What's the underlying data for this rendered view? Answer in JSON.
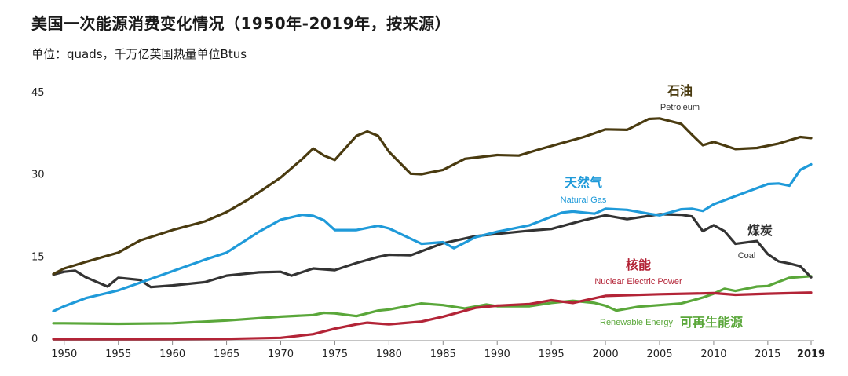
{
  "title": "美国一次能源消费变化情况（1950年-2019年，按来源）",
  "subtitle": "单位：quads，千万亿英国热量单位Btus",
  "chart_data": {
    "type": "line",
    "title": "美国一次能源消费变化情况（1950年-2019年，按来源）",
    "ylabel": "单位：quads，千万亿英国热量单位Btus",
    "xlabel": "",
    "ylim": [
      0,
      45
    ],
    "xlim": [
      1949,
      2019
    ],
    "yticks": [
      0,
      15,
      30,
      45
    ],
    "xticks": [
      1950,
      1955,
      1960,
      1965,
      1970,
      1975,
      1980,
      1985,
      1990,
      1995,
      2000,
      2005,
      2010,
      2015,
      2019
    ],
    "grid": false,
    "series": [
      {
        "name": "石油 Petroleum",
        "label_cn": "石油",
        "label_en": "Petroleum",
        "color": "#4a3b10",
        "x": [
          1949,
          1950,
          1952,
          1955,
          1957,
          1960,
          1963,
          1965,
          1967,
          1970,
          1972,
          1973,
          1974,
          1975,
          1977,
          1978,
          1979,
          1980,
          1982,
          1983,
          1985,
          1987,
          1990,
          1992,
          1994,
          1996,
          1998,
          2000,
          2002,
          2004,
          2005,
          2007,
          2008,
          2009,
          2010,
          2012,
          2014,
          2016,
          2018,
          2019
        ],
        "y": [
          11.9,
          12.9,
          14.1,
          15.8,
          18.0,
          19.9,
          21.5,
          23.2,
          25.5,
          29.5,
          32.9,
          34.8,
          33.5,
          32.7,
          37.1,
          37.9,
          37.1,
          34.2,
          30.2,
          30.1,
          30.9,
          32.9,
          33.6,
          33.5,
          34.7,
          35.8,
          36.9,
          38.3,
          38.2,
          40.2,
          40.3,
          39.3,
          37.3,
          35.4,
          36.0,
          34.7,
          34.9,
          35.7,
          36.9,
          36.7
        ]
      },
      {
        "name": "天然气 Natural Gas",
        "label_cn": "天然气",
        "label_en": "Natural Gas",
        "color": "#1f9ad9",
        "x": [
          1949,
          1950,
          1952,
          1955,
          1957,
          1960,
          1963,
          1965,
          1968,
          1970,
          1972,
          1973,
          1974,
          1975,
          1977,
          1979,
          1980,
          1983,
          1985,
          1986,
          1988,
          1990,
          1993,
          1996,
          1997,
          1999,
          2000,
          2002,
          2004,
          2005,
          2007,
          2008,
          2009,
          2010,
          2012,
          2015,
          2016,
          2017,
          2018,
          2019
        ],
        "y": [
          5.1,
          6.0,
          7.5,
          8.9,
          10.3,
          12.4,
          14.5,
          15.8,
          19.6,
          21.8,
          22.7,
          22.5,
          21.7,
          19.9,
          19.9,
          20.7,
          20.2,
          17.4,
          17.7,
          16.6,
          18.6,
          19.6,
          20.8,
          23.1,
          23.3,
          22.9,
          23.8,
          23.6,
          22.9,
          22.6,
          23.7,
          23.8,
          23.4,
          24.6,
          26.1,
          28.3,
          28.4,
          28.0,
          30.9,
          31.9
        ]
      },
      {
        "name": "煤炭 Coal",
        "label_cn": "煤炭",
        "label_en": "Coal",
        "color": "#333333",
        "x": [
          1949,
          1950,
          1951,
          1952,
          1954,
          1955,
          1957,
          1958,
          1960,
          1963,
          1965,
          1968,
          1970,
          1971,
          1973,
          1975,
          1977,
          1979,
          1980,
          1982,
          1985,
          1988,
          1990,
          1993,
          1995,
          1998,
          2000,
          2002,
          2005,
          2007,
          2008,
          2009,
          2010,
          2011,
          2012,
          2014,
          2015,
          2016,
          2017,
          2018,
          2019
        ],
        "y": [
          11.8,
          12.3,
          12.5,
          11.3,
          9.6,
          11.2,
          10.8,
          9.5,
          9.8,
          10.4,
          11.6,
          12.2,
          12.3,
          11.6,
          12.9,
          12.6,
          13.9,
          15.0,
          15.4,
          15.3,
          17.5,
          18.8,
          19.2,
          19.8,
          20.1,
          21.7,
          22.6,
          21.9,
          22.8,
          22.7,
          22.4,
          19.7,
          20.8,
          19.7,
          17.4,
          17.9,
          15.5,
          14.2,
          13.8,
          13.3,
          11.3
        ]
      },
      {
        "name": "核能 Nuclear Electric Power",
        "label_cn": "核能",
        "label_en": "Nuclear Electric Power",
        "color": "#b32437",
        "x": [
          1949,
          1957,
          1965,
          1970,
          1973,
          1975,
          1977,
          1978,
          1980,
          1983,
          1985,
          1988,
          1990,
          1993,
          1995,
          1997,
          2000,
          2005,
          2010,
          2012,
          2015,
          2019
        ],
        "y": [
          0,
          0,
          0.04,
          0.24,
          0.91,
          1.9,
          2.7,
          3.0,
          2.7,
          3.2,
          4.1,
          5.7,
          6.1,
          6.4,
          7.1,
          6.6,
          7.9,
          8.2,
          8.4,
          8.1,
          8.3,
          8.5
        ]
      },
      {
        "name": "可再生能源 Renewable Energy",
        "label_cn": "可再生能源",
        "label_en": "Renewable Energy",
        "color": "#5aa73a",
        "x": [
          1949,
          1950,
          1955,
          1960,
          1965,
          1970,
          1973,
          1974,
          1975,
          1977,
          1979,
          1980,
          1983,
          1985,
          1987,
          1989,
          1990,
          1993,
          1995,
          1997,
          1999,
          2000,
          2001,
          2003,
          2005,
          2007,
          2009,
          2010,
          2011,
          2012,
          2014,
          2015,
          2017,
          2019
        ],
        "y": [
          2.9,
          2.9,
          2.8,
          2.9,
          3.4,
          4.1,
          4.4,
          4.8,
          4.7,
          4.2,
          5.2,
          5.4,
          6.5,
          6.2,
          5.6,
          6.3,
          6.0,
          6.0,
          6.6,
          7.0,
          6.6,
          6.1,
          5.2,
          5.9,
          6.2,
          6.5,
          7.6,
          8.3,
          9.2,
          8.8,
          9.6,
          9.7,
          11.2,
          11.5
        ]
      }
    ],
    "annotations": [
      "石油",
      "Petroleum",
      "天然气",
      "Natural Gas",
      "煤炭",
      "Coal",
      "核能",
      "Nuclear Electric Power",
      "Renewable Energy",
      "可再生能源"
    ]
  }
}
